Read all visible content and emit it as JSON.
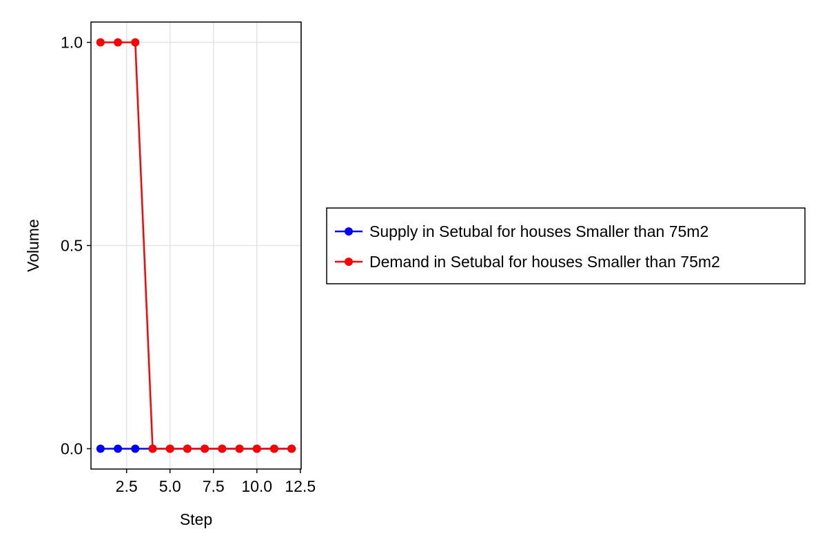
{
  "chart_data": {
    "type": "line",
    "title": "",
    "xlabel": "Step",
    "ylabel": "Volume",
    "xlim": [
      0.45,
      12.55
    ],
    "ylim": [
      -0.05,
      1.05
    ],
    "x_ticks": [
      2.5,
      5.0,
      7.5,
      10.0,
      12.5
    ],
    "x_tick_labels": [
      "2.5",
      "5.0",
      "7.5",
      "10.0",
      "12.5"
    ],
    "y_ticks": [
      0.0,
      0.5,
      1.0
    ],
    "y_tick_labels": [
      "0.0",
      "0.5",
      "1.0"
    ],
    "grid": true,
    "legend_position": "right",
    "x": [
      1,
      2,
      3,
      4,
      5,
      6,
      7,
      8,
      9,
      10,
      11,
      12
    ],
    "series": [
      {
        "name": "Supply in Setubal for houses Smaller than 75m2",
        "color": "#0000ff",
        "values": [
          0,
          0,
          0,
          0,
          0,
          0,
          0,
          0,
          0,
          0,
          0,
          0
        ]
      },
      {
        "name": "Demand in Setubal for houses Smaller than 75m2",
        "color": "#ff0000",
        "values": [
          1,
          1,
          1,
          0,
          0,
          0,
          0,
          0,
          0,
          0,
          0,
          0
        ]
      }
    ]
  }
}
